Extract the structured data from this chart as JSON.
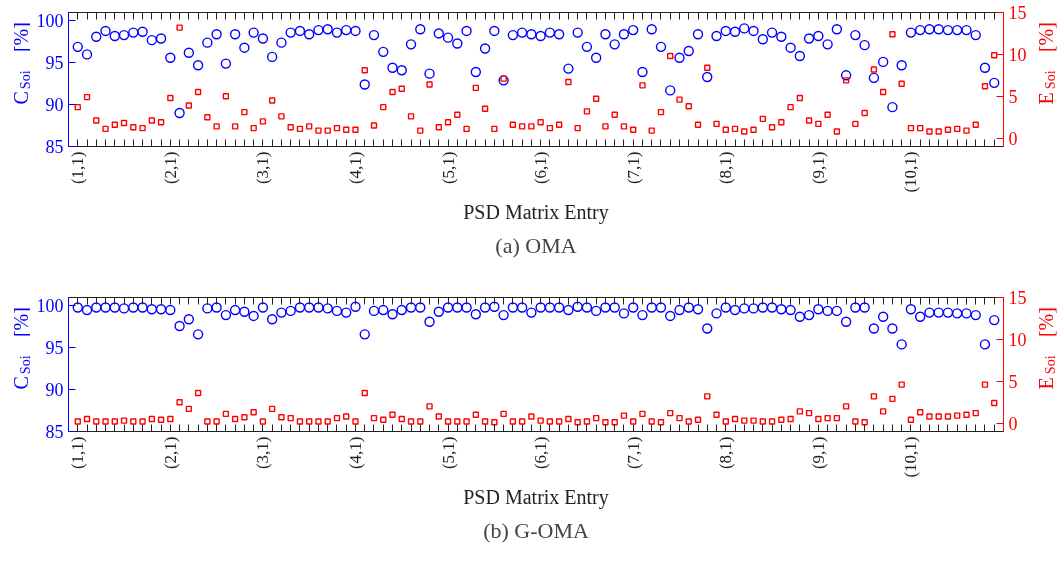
{
  "chart_data": [
    {
      "type": "scatter",
      "title": "(a) OMA",
      "xlabel": "PSD Matrix Entry",
      "ylabel": "C$_{Soi}$ [%]",
      "y2label": "E$_{Soi}$ [%]",
      "categories": [
        "(1,1)",
        null,
        null,
        null,
        null,
        null,
        null,
        null,
        null,
        null,
        "(2,1)",
        null,
        null,
        null,
        null,
        null,
        null,
        null,
        null,
        null,
        "(3,1)",
        null,
        null,
        null,
        null,
        null,
        null,
        null,
        null,
        null,
        "(4,1)",
        null,
        null,
        null,
        null,
        null,
        null,
        null,
        null,
        null,
        "(5,1)",
        null,
        null,
        null,
        null,
        null,
        null,
        null,
        null,
        null,
        "(6,1)",
        null,
        null,
        null,
        null,
        null,
        null,
        null,
        null,
        null,
        "(7,1)",
        null,
        null,
        null,
        null,
        null,
        null,
        null,
        null,
        null,
        "(8,1)",
        null,
        null,
        null,
        null,
        null,
        null,
        null,
        null,
        null,
        "(9,1)",
        null,
        null,
        null,
        null,
        null,
        null,
        null,
        null,
        null,
        "(10,1)",
        null,
        null,
        null,
        null,
        null,
        null,
        null,
        null,
        null
      ],
      "ylim": [
        85,
        101
      ],
      "yticks": [
        85,
        90,
        95,
        100
      ],
      "y2lim": [
        -1,
        15
      ],
      "y2ticks": [
        0,
        5,
        10,
        15
      ],
      "grid": false,
      "series": [
        {
          "color": "#0000ff",
          "marker": "circle",
          "values": [
            96.9,
            96.0,
            98.1,
            98.8,
            98.2,
            98.3,
            98.6,
            98.7,
            97.7,
            97.9,
            95.6,
            89.0,
            96.2,
            94.7,
            97.4,
            98.4,
            94.9,
            98.4,
            96.8,
            98.6,
            97.9,
            95.7,
            97.4,
            98.6,
            98.8,
            98.4,
            98.9,
            99.0,
            98.6,
            98.9,
            98.8,
            92.4,
            98.3,
            96.3,
            94.4,
            94.1,
            97.2,
            99.0,
            93.7,
            98.5,
            98.0,
            97.3,
            98.8,
            93.9,
            96.7,
            98.8,
            92.9,
            98.3,
            98.6,
            98.4,
            98.2,
            98.6,
            98.4,
            94.3,
            98.6,
            96.9,
            95.6,
            98.4,
            97.2,
            98.4,
            98.9,
            93.9,
            99.0,
            96.9,
            91.7,
            95.6,
            96.4,
            98.4,
            93.3,
            98.2,
            98.8,
            98.7,
            99.1,
            98.8,
            97.8,
            98.6,
            98.1,
            96.8,
            95.8,
            97.9,
            98.2,
            97.2,
            99.0,
            93.5,
            98.3,
            97.1,
            93.2,
            95.1,
            89.7,
            94.7,
            98.6,
            98.9,
            99.0,
            99.0,
            98.9,
            98.9,
            98.9,
            98.3,
            94.4,
            92.6
          ]
        },
        {
          "color": "#ff0000",
          "marker": "square",
          "axis": "y2",
          "values": [
            3.7,
            4.9,
            2.1,
            1.1,
            1.6,
            1.8,
            1.3,
            1.2,
            2.1,
            1.9,
            4.8,
            13.2,
            3.9,
            5.5,
            2.5,
            1.4,
            5.0,
            1.4,
            3.1,
            1.2,
            2.0,
            4.5,
            2.6,
            1.3,
            1.1,
            1.4,
            0.9,
            0.9,
            1.2,
            1.0,
            1.0,
            8.1,
            1.5,
            3.7,
            5.5,
            5.9,
            2.6,
            0.9,
            6.4,
            1.3,
            1.9,
            2.8,
            1.1,
            6.0,
            3.5,
            1.1,
            7.1,
            1.6,
            1.4,
            1.4,
            1.9,
            1.2,
            1.6,
            6.7,
            1.2,
            3.2,
            4.7,
            1.4,
            2.8,
            1.4,
            1.0,
            6.3,
            0.9,
            3.1,
            9.8,
            4.6,
            3.8,
            1.6,
            8.4,
            1.7,
            1.0,
            1.1,
            0.8,
            1.0,
            2.3,
            1.3,
            1.9,
            3.7,
            4.8,
            2.1,
            1.7,
            2.8,
            0.8,
            6.9,
            1.7,
            3.0,
            8.2,
            5.5,
            12.4,
            6.5,
            1.2,
            1.2,
            0.8,
            0.8,
            1.0,
            1.1,
            0.9,
            1.6,
            6.2,
            9.9
          ]
        }
      ]
    },
    {
      "type": "scatter",
      "title": "(b) G-OMA",
      "xlabel": "PSD Matrix Entry",
      "ylabel": "C$_{Soi}$ [%]",
      "y2label": "E$_{Soi}$ [%]",
      "categories": [
        "(1,1)",
        null,
        null,
        null,
        null,
        null,
        null,
        null,
        null,
        null,
        "(2,1)",
        null,
        null,
        null,
        null,
        null,
        null,
        null,
        null,
        null,
        "(3,1)",
        null,
        null,
        null,
        null,
        null,
        null,
        null,
        null,
        null,
        "(4,1)",
        null,
        null,
        null,
        null,
        null,
        null,
        null,
        null,
        null,
        "(5,1)",
        null,
        null,
        null,
        null,
        null,
        null,
        null,
        null,
        null,
        "(6,1)",
        null,
        null,
        null,
        null,
        null,
        null,
        null,
        null,
        null,
        "(7,1)",
        null,
        null,
        null,
        null,
        null,
        null,
        null,
        null,
        null,
        "(8,1)",
        null,
        null,
        null,
        null,
        null,
        null,
        null,
        null,
        null,
        "(9,1)",
        null,
        null,
        null,
        null,
        null,
        null,
        null,
        null,
        null,
        "(10,1)",
        null,
        null,
        null,
        null,
        null,
        null,
        null,
        null,
        null
      ],
      "ylim": [
        85,
        101
      ],
      "yticks": [
        85,
        90,
        95,
        100
      ],
      "y2lim": [
        -1,
        15
      ],
      "y2ticks": [
        0,
        5,
        10,
        15
      ],
      "grid": false,
      "series": [
        {
          "color": "#0000ff",
          "marker": "circle",
          "values": [
            99.8,
            99.5,
            99.8,
            99.8,
            99.8,
            99.7,
            99.8,
            99.8,
            99.6,
            99.6,
            99.5,
            97.6,
            98.4,
            96.6,
            99.7,
            99.8,
            98.9,
            99.5,
            99.3,
            98.8,
            99.8,
            98.4,
            99.2,
            99.4,
            99.8,
            99.8,
            99.8,
            99.7,
            99.4,
            99.2,
            99.9,
            96.6,
            99.4,
            99.5,
            99.0,
            99.5,
            99.8,
            99.8,
            98.1,
            99.3,
            99.8,
            99.8,
            99.8,
            99.0,
            99.8,
            99.9,
            98.9,
            99.8,
            99.8,
            99.2,
            99.8,
            99.8,
            99.8,
            99.5,
            99.9,
            99.8,
            99.4,
            99.8,
            99.8,
            99.1,
            99.8,
            98.9,
            99.8,
            99.8,
            98.8,
            99.5,
            99.8,
            99.6,
            97.3,
            99.1,
            99.8,
            99.5,
            99.7,
            99.7,
            99.8,
            99.8,
            99.6,
            99.5,
            98.7,
            98.9,
            99.6,
            99.4,
            99.4,
            98.1,
            99.8,
            99.8,
            97.3,
            98.7,
            97.3,
            95.4,
            99.6,
            98.7,
            99.2,
            99.2,
            99.2,
            99.1,
            99.1,
            98.9,
            95.4,
            98.3
          ]
        },
        {
          "color": "#ff0000",
          "marker": "square",
          "axis": "y2",
          "values": [
            0.2,
            0.5,
            0.2,
            0.2,
            0.2,
            0.3,
            0.2,
            0.2,
            0.5,
            0.4,
            0.5,
            2.5,
            1.7,
            3.6,
            0.2,
            0.2,
            1.1,
            0.5,
            0.7,
            1.3,
            0.2,
            1.7,
            0.7,
            0.6,
            0.2,
            0.2,
            0.2,
            0.2,
            0.6,
            0.8,
            0.2,
            3.6,
            0.6,
            0.4,
            1.0,
            0.5,
            0.2,
            0.2,
            2.0,
            0.8,
            0.2,
            0.2,
            0.2,
            1.0,
            0.2,
            0.1,
            1.1,
            0.2,
            0.2,
            0.8,
            0.3,
            0.2,
            0.2,
            0.5,
            0.1,
            0.2,
            0.6,
            0.1,
            0.1,
            0.9,
            0.2,
            1.1,
            0.2,
            0.1,
            1.2,
            0.6,
            0.2,
            0.4,
            3.2,
            1.0,
            0.2,
            0.5,
            0.3,
            0.3,
            0.2,
            0.2,
            0.4,
            0.5,
            1.4,
            1.2,
            0.5,
            0.6,
            0.6,
            2.0,
            0.2,
            0.1,
            3.2,
            1.4,
            2.9,
            4.6,
            0.4,
            1.3,
            0.8,
            0.8,
            0.8,
            0.9,
            1.0,
            1.2,
            4.6,
            2.4
          ]
        }
      ]
    }
  ]
}
